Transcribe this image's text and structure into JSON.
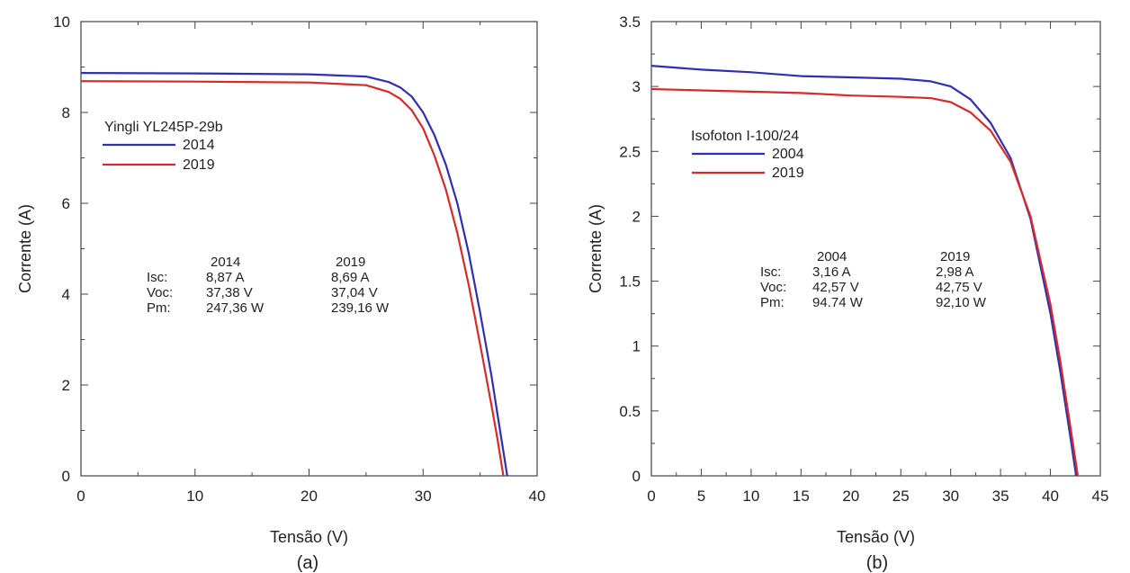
{
  "chart_data": [
    {
      "type": "line",
      "panel_label": "(a)",
      "xlabel": "Tensão (V)",
      "ylabel": "Corrente (A)",
      "xlim": [
        0,
        40
      ],
      "ylim": [
        0,
        10
      ],
      "xticks": [
        "0",
        "10",
        "20",
        "30",
        "40"
      ],
      "yticks": [
        "0",
        "2",
        "4",
        "6",
        "8",
        "10"
      ],
      "grid": false,
      "legend": {
        "placement": "upper-left",
        "title": "Yingli YL245P-29b",
        "entries": [
          "2014",
          "2019"
        ]
      },
      "series": [
        {
          "name": "2014",
          "color": "#2f2fb0",
          "x": [
            0,
            10,
            20,
            25,
            27,
            28,
            29,
            30,
            31,
            32,
            33,
            34,
            35,
            36,
            36.5,
            37,
            37.38
          ],
          "y": [
            8.87,
            8.86,
            8.84,
            8.79,
            8.67,
            8.55,
            8.35,
            8.0,
            7.5,
            6.85,
            6.0,
            4.9,
            3.6,
            2.2,
            1.4,
            0.6,
            0
          ]
        },
        {
          "name": "2019",
          "color": "#d42b2b",
          "x": [
            0,
            10,
            20,
            25,
            27,
            28,
            29,
            30,
            31,
            32,
            33,
            34,
            35,
            36,
            36.5,
            37.04
          ],
          "y": [
            8.69,
            8.68,
            8.66,
            8.6,
            8.45,
            8.3,
            8.05,
            7.65,
            7.05,
            6.3,
            5.35,
            4.2,
            2.9,
            1.55,
            0.85,
            0
          ]
        }
      ],
      "table": {
        "header": [
          "",
          "2014",
          "2019"
        ],
        "rows": [
          [
            "Isc:",
            "8,87 A",
            "8,69 A"
          ],
          [
            "Voc:",
            "37,38 V",
            "37,04 V"
          ],
          [
            "Pm:",
            "247,36 W",
            "239,16 W"
          ]
        ]
      }
    },
    {
      "type": "line",
      "panel_label": "(b)",
      "xlabel": "Tensão (V)",
      "ylabel": "Corrente (A)",
      "xlim": [
        0,
        45
      ],
      "ylim": [
        0,
        3.5
      ],
      "xticks": [
        "0",
        "5",
        "10",
        "15",
        "20",
        "25",
        "30",
        "35",
        "40",
        "45"
      ],
      "yticks": [
        "0",
        "0.5",
        "1",
        "1.5",
        "2",
        "2.5",
        "3",
        "3.5"
      ],
      "grid": false,
      "legend": {
        "placement": "upper-left",
        "title": "Isofoton I-100/24",
        "entries": [
          "2004",
          "2019"
        ]
      },
      "series": [
        {
          "name": "2004",
          "color": "#2f2fb0",
          "x": [
            0,
            5,
            10,
            15,
            20,
            25,
            28,
            30,
            32,
            34,
            36,
            38,
            40,
            41,
            42,
            42.57
          ],
          "y": [
            3.16,
            3.13,
            3.11,
            3.08,
            3.07,
            3.06,
            3.04,
            3.0,
            2.9,
            2.72,
            2.45,
            1.98,
            1.25,
            0.8,
            0.3,
            0
          ]
        },
        {
          "name": "2019",
          "color": "#d42b2b",
          "x": [
            0,
            5,
            10,
            15,
            20,
            25,
            28,
            30,
            32,
            34,
            36,
            38,
            40,
            41,
            42,
            42.75
          ],
          "y": [
            2.98,
            2.97,
            2.96,
            2.95,
            2.93,
            2.92,
            2.91,
            2.88,
            2.8,
            2.66,
            2.42,
            2.0,
            1.32,
            0.88,
            0.38,
            0
          ]
        }
      ],
      "table": {
        "header": [
          "",
          "2004",
          "2019"
        ],
        "rows": [
          [
            "Isc:",
            "3,16 A",
            "2,98 A"
          ],
          [
            "Voc:",
            "42,57 V",
            "42,75 V"
          ],
          [
            "Pm:",
            "94.74 W",
            "92,10 W"
          ]
        ]
      }
    }
  ]
}
